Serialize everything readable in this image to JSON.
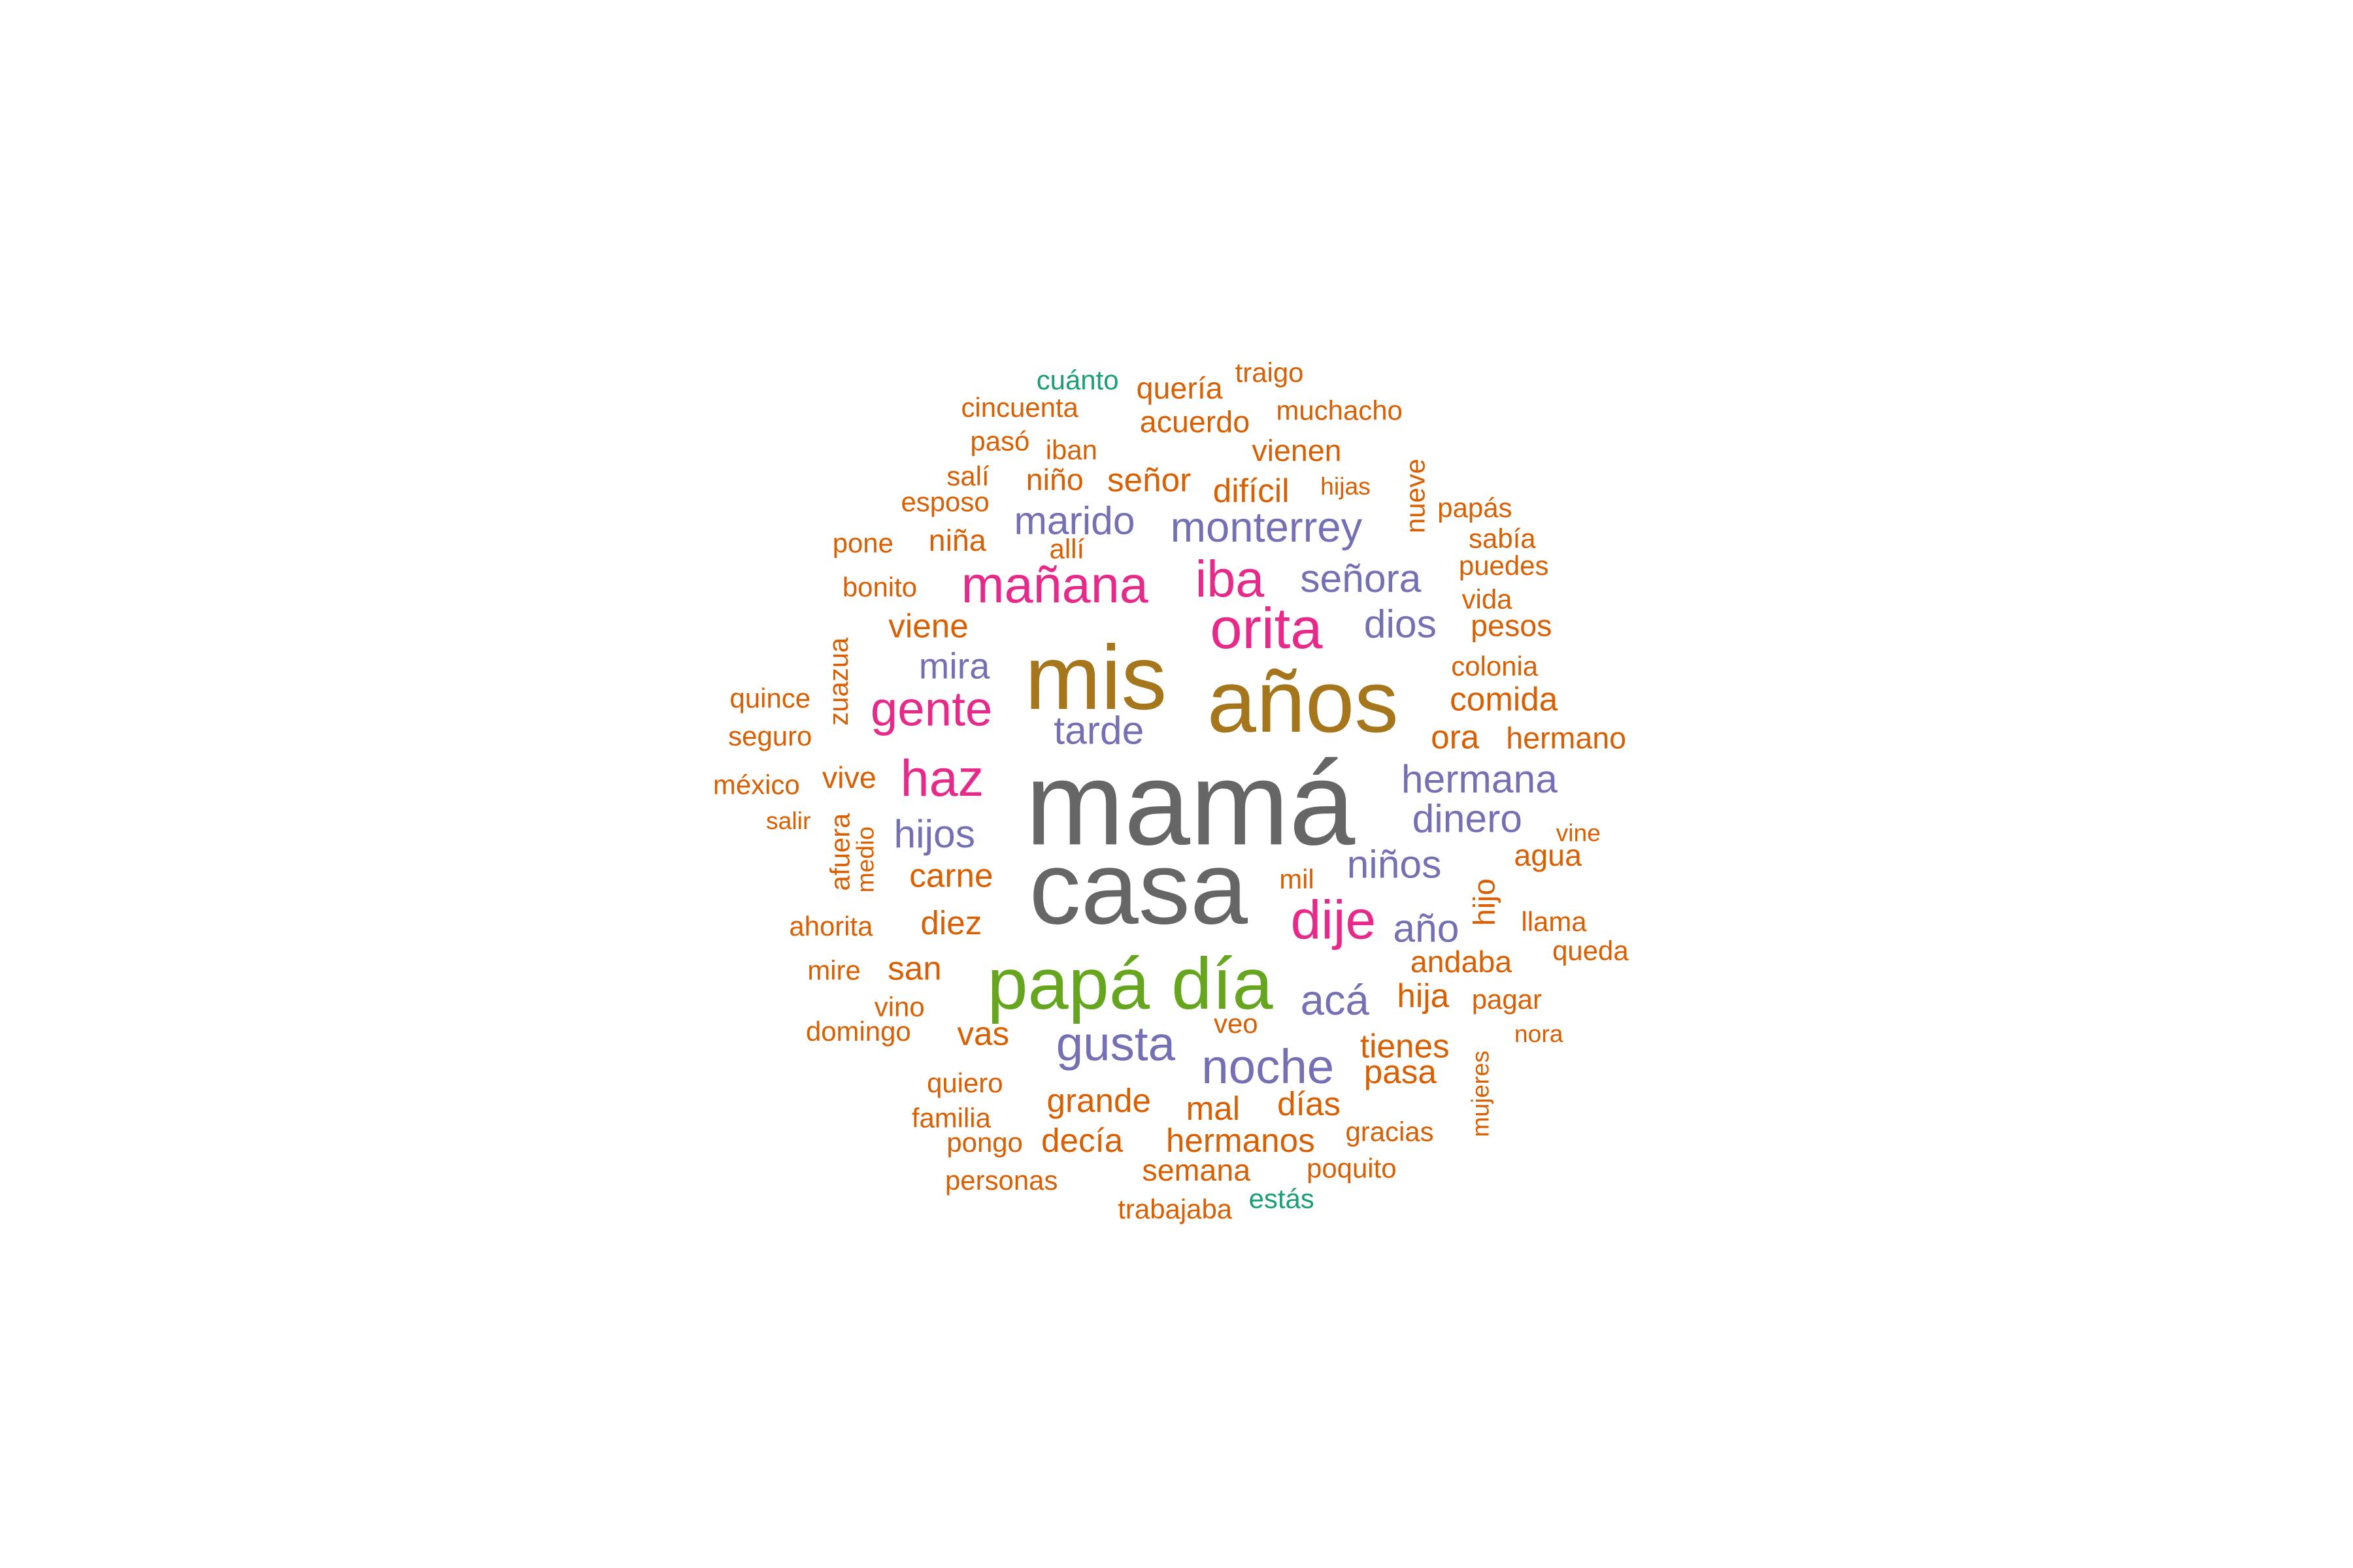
{
  "colors": {
    "tier1": "#666666",
    "tier2": "#a6761d",
    "tier3": "#66a61e",
    "tier4": "#e7298a",
    "tier5": "#7570b3",
    "tier6": "#d95f02",
    "tier7": "#1b9e77"
  },
  "words": [
    {
      "id": "mama",
      "text": "mamá",
      "tier": "tier1"
    },
    {
      "id": "casa",
      "text": "casa",
      "tier": "tier1"
    },
    {
      "id": "mis",
      "text": "mis",
      "tier": "tier2"
    },
    {
      "id": "anos",
      "text": "años",
      "tier": "tier2"
    },
    {
      "id": "papa",
      "text": "papá",
      "tier": "tier3"
    },
    {
      "id": "dia",
      "text": "día",
      "tier": "tier3"
    },
    {
      "id": "manana",
      "text": "mañana",
      "tier": "tier4"
    },
    {
      "id": "iba",
      "text": "iba",
      "tier": "tier4"
    },
    {
      "id": "orita",
      "text": "orita",
      "tier": "tier4"
    },
    {
      "id": "gente",
      "text": "gente",
      "tier": "tier4"
    },
    {
      "id": "haz",
      "text": "haz",
      "tier": "tier4"
    },
    {
      "id": "dije",
      "text": "dije",
      "tier": "tier4"
    },
    {
      "id": "marido",
      "text": "marido",
      "tier": "tier5"
    },
    {
      "id": "monterrey",
      "text": "monterrey",
      "tier": "tier5"
    },
    {
      "id": "senora",
      "text": "señora",
      "tier": "tier5"
    },
    {
      "id": "dios",
      "text": "dios",
      "tier": "tier5"
    },
    {
      "id": "mira",
      "text": "mira",
      "tier": "tier5"
    },
    {
      "id": "tarde",
      "text": "tarde",
      "tier": "tier5"
    },
    {
      "id": "hermana",
      "text": "hermana",
      "tier": "tier5"
    },
    {
      "id": "dinero",
      "text": "dinero",
      "tier": "tier5"
    },
    {
      "id": "hijos",
      "text": "hijos",
      "tier": "tier5"
    },
    {
      "id": "ninos",
      "text": "niños",
      "tier": "tier5"
    },
    {
      "id": "ano",
      "text": "año",
      "tier": "tier5"
    },
    {
      "id": "aca",
      "text": "acá",
      "tier": "tier5"
    },
    {
      "id": "gusta",
      "text": "gusta",
      "tier": "tier5"
    },
    {
      "id": "noche",
      "text": "noche",
      "tier": "tier5"
    },
    {
      "id": "cuanto",
      "text": "cuánto",
      "tier": "tier7"
    },
    {
      "id": "estas",
      "text": "estás",
      "tier": "tier7"
    },
    {
      "id": "queria",
      "text": "quería",
      "tier": "tier6"
    },
    {
      "id": "traigo",
      "text": "traigo",
      "tier": "tier6"
    },
    {
      "id": "cincuenta",
      "text": "cincuenta",
      "tier": "tier6"
    },
    {
      "id": "acuerdo",
      "text": "acuerdo",
      "tier": "tier6"
    },
    {
      "id": "muchacho",
      "text": "muchacho",
      "tier": "tier6"
    },
    {
      "id": "paso",
      "text": "pasó",
      "tier": "tier6"
    },
    {
      "id": "iban",
      "text": "iban",
      "tier": "tier6"
    },
    {
      "id": "vienen",
      "text": "vienen",
      "tier": "tier6"
    },
    {
      "id": "sali",
      "text": "salí",
      "tier": "tier6"
    },
    {
      "id": "nino",
      "text": "niño",
      "tier": "tier6"
    },
    {
      "id": "senor",
      "text": "señor",
      "tier": "tier6"
    },
    {
      "id": "dificil",
      "text": "difícil",
      "tier": "tier6"
    },
    {
      "id": "hijas",
      "text": "hijas",
      "tier": "tier6"
    },
    {
      "id": "nueve",
      "text": "nueve",
      "tier": "tier6"
    },
    {
      "id": "esposo",
      "text": "esposo",
      "tier": "tier6"
    },
    {
      "id": "papas",
      "text": "papás",
      "tier": "tier6"
    },
    {
      "id": "pone",
      "text": "pone",
      "tier": "tier6"
    },
    {
      "id": "nina",
      "text": "niña",
      "tier": "tier6"
    },
    {
      "id": "alli",
      "text": "allí",
      "tier": "tier6"
    },
    {
      "id": "sabia",
      "text": "sabía",
      "tier": "tier6"
    },
    {
      "id": "puedes",
      "text": "puedes",
      "tier": "tier6"
    },
    {
      "id": "bonito",
      "text": "bonito",
      "tier": "tier6"
    },
    {
      "id": "vida",
      "text": "vida",
      "tier": "tier6"
    },
    {
      "id": "viene",
      "text": "viene",
      "tier": "tier6"
    },
    {
      "id": "pesos",
      "text": "pesos",
      "tier": "tier6"
    },
    {
      "id": "zuazua",
      "text": "zuazua",
      "tier": "tier6"
    },
    {
      "id": "colonia",
      "text": "colonia",
      "tier": "tier6"
    },
    {
      "id": "quince",
      "text": "quince",
      "tier": "tier6"
    },
    {
      "id": "comida",
      "text": "comida",
      "tier": "tier6"
    },
    {
      "id": "seguro",
      "text": "seguro",
      "tier": "tier6"
    },
    {
      "id": "ora",
      "text": "ora",
      "tier": "tier6"
    },
    {
      "id": "hermano",
      "text": "hermano",
      "tier": "tier6"
    },
    {
      "id": "mexico",
      "text": "méxico",
      "tier": "tier6"
    },
    {
      "id": "vive",
      "text": "vive",
      "tier": "tier6"
    },
    {
      "id": "salir",
      "text": "salir",
      "tier": "tier6"
    },
    {
      "id": "afuera",
      "text": "afuera",
      "tier": "tier6"
    },
    {
      "id": "medio",
      "text": "medio",
      "tier": "tier6"
    },
    {
      "id": "vine",
      "text": "vine",
      "tier": "tier6"
    },
    {
      "id": "carne",
      "text": "carne",
      "tier": "tier6"
    },
    {
      "id": "mil",
      "text": "mil",
      "tier": "tier6"
    },
    {
      "id": "agua",
      "text": "agua",
      "tier": "tier6"
    },
    {
      "id": "hijo",
      "text": "hijo",
      "tier": "tier6"
    },
    {
      "id": "ahorita",
      "text": "ahorita",
      "tier": "tier6"
    },
    {
      "id": "diez",
      "text": "diez",
      "tier": "tier6"
    },
    {
      "id": "llama",
      "text": "llama",
      "tier": "tier6"
    },
    {
      "id": "queda",
      "text": "queda",
      "tier": "tier6"
    },
    {
      "id": "mire",
      "text": "mire",
      "tier": "tier6"
    },
    {
      "id": "san",
      "text": "san",
      "tier": "tier6"
    },
    {
      "id": "andaba",
      "text": "andaba",
      "tier": "tier6"
    },
    {
      "id": "vino",
      "text": "vino",
      "tier": "tier6"
    },
    {
      "id": "hija",
      "text": "hija",
      "tier": "tier6"
    },
    {
      "id": "pagar",
      "text": "pagar",
      "tier": "tier6"
    },
    {
      "id": "domingo",
      "text": "domingo",
      "tier": "tier6"
    },
    {
      "id": "vas",
      "text": "vas",
      "tier": "tier6"
    },
    {
      "id": "veo",
      "text": "veo",
      "tier": "tier6"
    },
    {
      "id": "nora",
      "text": "nora",
      "tier": "tier6"
    },
    {
      "id": "tienes",
      "text": "tienes",
      "tier": "tier6"
    },
    {
      "id": "quiero",
      "text": "quiero",
      "tier": "tier6"
    },
    {
      "id": "pasa",
      "text": "pasa",
      "tier": "tier6"
    },
    {
      "id": "grande",
      "text": "grande",
      "tier": "tier6"
    },
    {
      "id": "mal",
      "text": "mal",
      "tier": "tier6"
    },
    {
      "id": "dias",
      "text": "días",
      "tier": "tier6"
    },
    {
      "id": "mujeres",
      "text": "mujeres",
      "tier": "tier6"
    },
    {
      "id": "familia",
      "text": "familia",
      "tier": "tier6"
    },
    {
      "id": "pongo",
      "text": "pongo",
      "tier": "tier6"
    },
    {
      "id": "decia",
      "text": "decía",
      "tier": "tier6"
    },
    {
      "id": "hermanos",
      "text": "hermanos",
      "tier": "tier6"
    },
    {
      "id": "gracias",
      "text": "gracias",
      "tier": "tier6"
    },
    {
      "id": "semana",
      "text": "semana",
      "tier": "tier6"
    },
    {
      "id": "poquito",
      "text": "poquito",
      "tier": "tier6"
    },
    {
      "id": "personas",
      "text": "personas",
      "tier": "tier6"
    },
    {
      "id": "trabajaba",
      "text": "trabajaba",
      "tier": "tier6"
    }
  ]
}
